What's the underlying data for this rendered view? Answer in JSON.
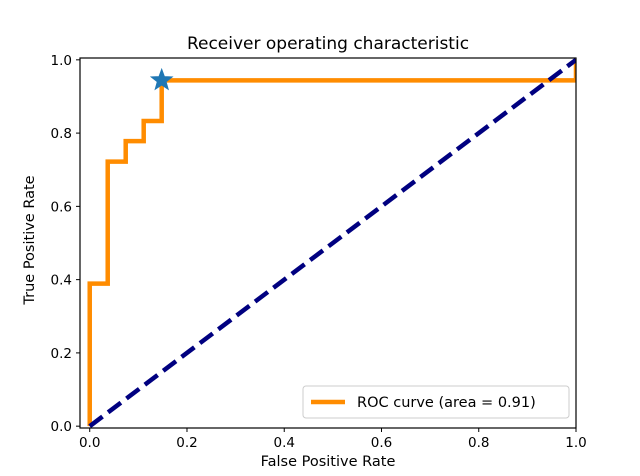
{
  "chart_data": {
    "type": "line",
    "title": "Receiver operating characteristic",
    "xlabel": "False Positive Rate",
    "ylabel": "True Positive Rate",
    "xlim": [
      -0.02,
      1.0
    ],
    "ylim": [
      -0.005,
      1.005
    ],
    "x_ticks": [
      0.0,
      0.2,
      0.4,
      0.6,
      0.8,
      1.0
    ],
    "y_ticks": [
      0.0,
      0.2,
      0.4,
      0.6,
      0.8,
      1.0
    ],
    "x_tick_labels": [
      "0.0",
      "0.2",
      "0.4",
      "0.6",
      "0.8",
      "1.0"
    ],
    "y_tick_labels": [
      "0.0",
      "0.2",
      "0.4",
      "0.6",
      "0.8",
      "1.0"
    ],
    "grid": false,
    "legend_position": "lower-right",
    "series": [
      {
        "name": "ROC curve (area = 0.91)",
        "color": "#ff8c00",
        "style": "solid",
        "x": [
          0.0,
          0.0,
          0.0,
          0.037,
          0.037,
          0.074,
          0.074,
          0.111,
          0.111,
          0.148,
          0.148,
          1.0,
          1.0
        ],
        "y": [
          0.0,
          0.389,
          0.389,
          0.389,
          0.722,
          0.722,
          0.778,
          0.778,
          0.833,
          0.833,
          0.944,
          0.944,
          1.0
        ]
      },
      {
        "color": "#000080",
        "style": "dashed",
        "x": [
          0.0,
          1.0
        ],
        "y": [
          0.0,
          1.0
        ]
      }
    ],
    "markers": [
      {
        "shape": "star",
        "color": "#1f77b4",
        "x": 0.148,
        "y": 0.944
      }
    ]
  }
}
